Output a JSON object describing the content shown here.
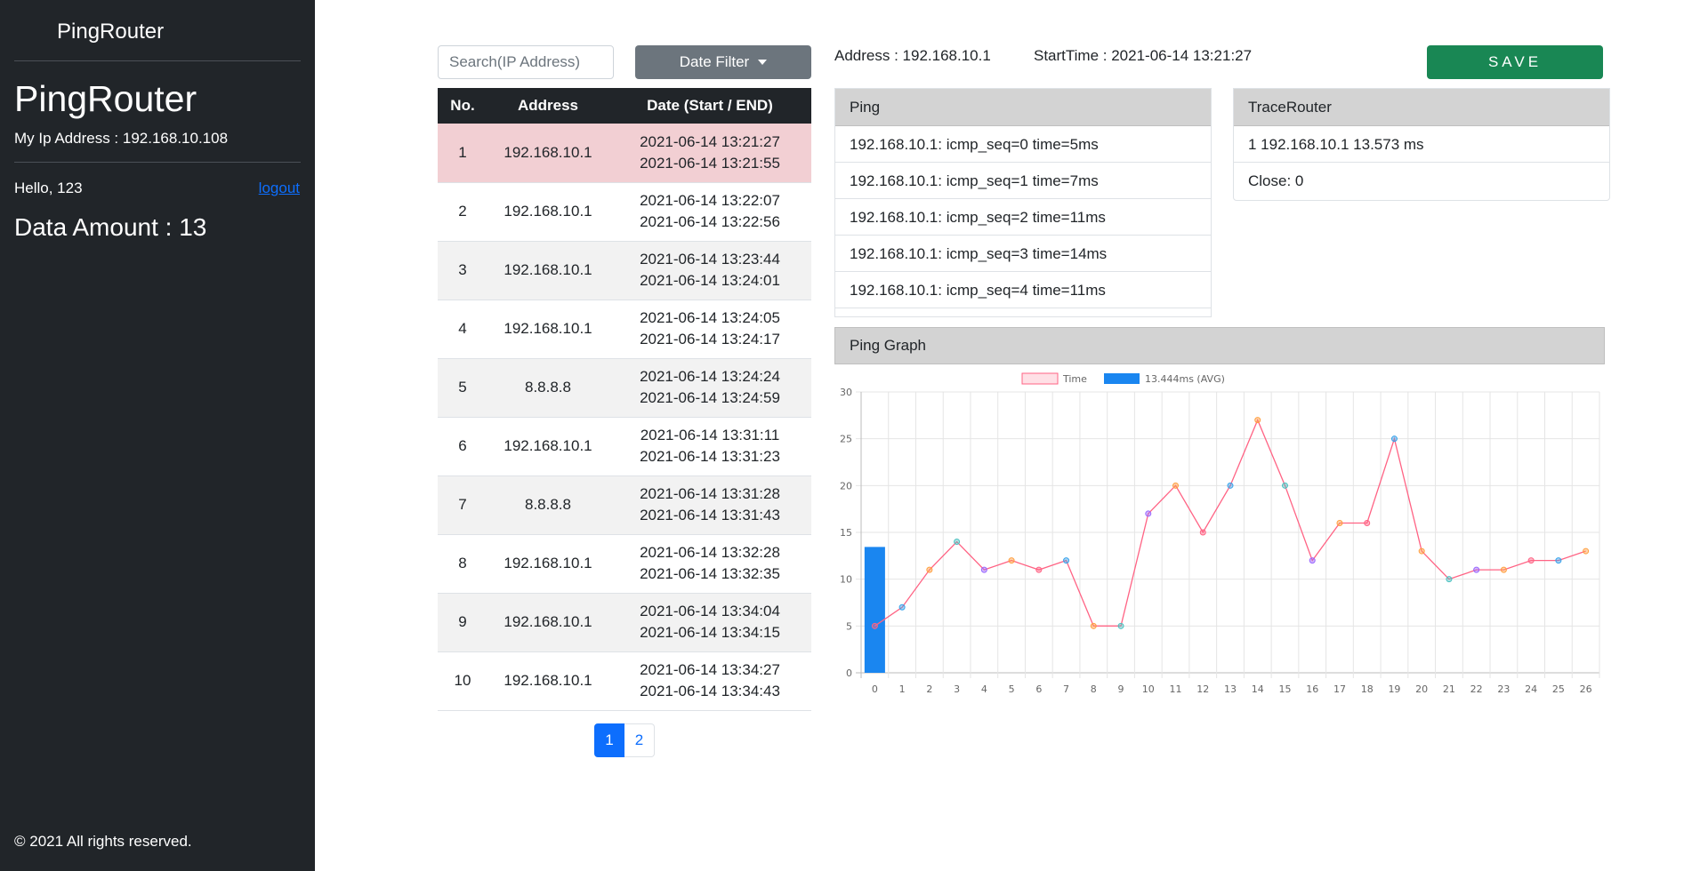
{
  "sidebar": {
    "brand": "PingRouter",
    "title": "PingRouter",
    "my_ip": "My Ip Address : 192.168.10.108",
    "greeting": "Hello, 123",
    "logout": "logout",
    "data_amount": "Data Amount : 13",
    "footer": "© 2021 All rights reserved."
  },
  "controls": {
    "search_placeholder": "Search(IP Address)",
    "date_filter": "Date Filter",
    "save": "SAVE"
  },
  "table": {
    "headers": [
      "No.",
      "Address",
      "Date (Start / END)"
    ],
    "rows": [
      {
        "no": "1",
        "address": "192.168.10.1",
        "start": "2021-06-14 13:21:27",
        "end": "2021-06-14 13:21:55"
      },
      {
        "no": "2",
        "address": "192.168.10.1",
        "start": "2021-06-14 13:22:07",
        "end": "2021-06-14 13:22:56"
      },
      {
        "no": "3",
        "address": "192.168.10.1",
        "start": "2021-06-14 13:23:44",
        "end": "2021-06-14 13:24:01"
      },
      {
        "no": "4",
        "address": "192.168.10.1",
        "start": "2021-06-14 13:24:05",
        "end": "2021-06-14 13:24:17"
      },
      {
        "no": "5",
        "address": "8.8.8.8",
        "start": "2021-06-14 13:24:24",
        "end": "2021-06-14 13:24:59"
      },
      {
        "no": "6",
        "address": "192.168.10.1",
        "start": "2021-06-14 13:31:11",
        "end": "2021-06-14 13:31:23"
      },
      {
        "no": "7",
        "address": "8.8.8.8",
        "start": "2021-06-14 13:31:28",
        "end": "2021-06-14 13:31:43"
      },
      {
        "no": "8",
        "address": "192.168.10.1",
        "start": "2021-06-14 13:32:28",
        "end": "2021-06-14 13:32:35"
      },
      {
        "no": "9",
        "address": "192.168.10.1",
        "start": "2021-06-14 13:34:04",
        "end": "2021-06-14 13:34:15"
      },
      {
        "no": "10",
        "address": "192.168.10.1",
        "start": "2021-06-14 13:34:27",
        "end": "2021-06-14 13:34:43"
      }
    ]
  },
  "pagination": [
    "1",
    "2"
  ],
  "info": {
    "address": "Address : 192.168.10.1",
    "start_time": "StartTime : 2021-06-14 13:21:27"
  },
  "ping_panel": {
    "title": "Ping",
    "items": [
      "192.168.10.1: icmp_seq=0 time=5ms",
      "192.168.10.1: icmp_seq=1 time=7ms",
      "192.168.10.1: icmp_seq=2 time=11ms",
      "192.168.10.1: icmp_seq=3 time=14ms",
      "192.168.10.1: icmp_seq=4 time=11ms"
    ]
  },
  "trace_panel": {
    "title": "TraceRouter",
    "items": [
      "1 192.168.10.1 13.573 ms",
      "Close: 0"
    ]
  },
  "graph_panel": {
    "title": "Ping Graph"
  },
  "chart_data": {
    "type": "line",
    "x": [
      0,
      1,
      2,
      3,
      4,
      5,
      6,
      7,
      8,
      9,
      10,
      11,
      12,
      13,
      14,
      15,
      16,
      17,
      18,
      19,
      20,
      21,
      22,
      23,
      24,
      25,
      26
    ],
    "series": [
      {
        "name": "Time",
        "type": "line",
        "color": "#ff6384",
        "values": [
          5,
          7,
          11,
          14,
          11,
          12,
          11,
          12,
          5,
          5,
          17,
          20,
          15,
          20,
          27,
          20,
          12,
          16,
          16,
          25,
          13,
          10,
          11,
          11,
          12,
          12,
          13
        ]
      },
      {
        "name": "13.444ms (AVG)",
        "type": "bar",
        "color": "#1a86f0",
        "x": [
          0
        ],
        "values": [
          13.444
        ]
      }
    ],
    "point_colors": [
      "#ff6384",
      "#36a2eb",
      "#ff9f40",
      "#4bc0c0",
      "#9966ff",
      "#ff9f40",
      "#ff6384",
      "#36a2eb",
      "#ff9f40",
      "#4bc0c0",
      "#9966ff",
      "#ff9f40",
      "#ff6384",
      "#36a2eb",
      "#ff9f40",
      "#4bc0c0",
      "#9966ff",
      "#ff9f40",
      "#ff6384",
      "#36a2eb",
      "#ff9f40",
      "#4bc0c0",
      "#9966ff",
      "#ff9f40",
      "#ff6384",
      "#36a2eb",
      "#ff9f40"
    ],
    "ylim": [
      0,
      30
    ],
    "yticks": [
      0,
      5,
      10,
      15,
      20,
      25,
      30
    ],
    "grid": true,
    "legend": "top-center"
  }
}
